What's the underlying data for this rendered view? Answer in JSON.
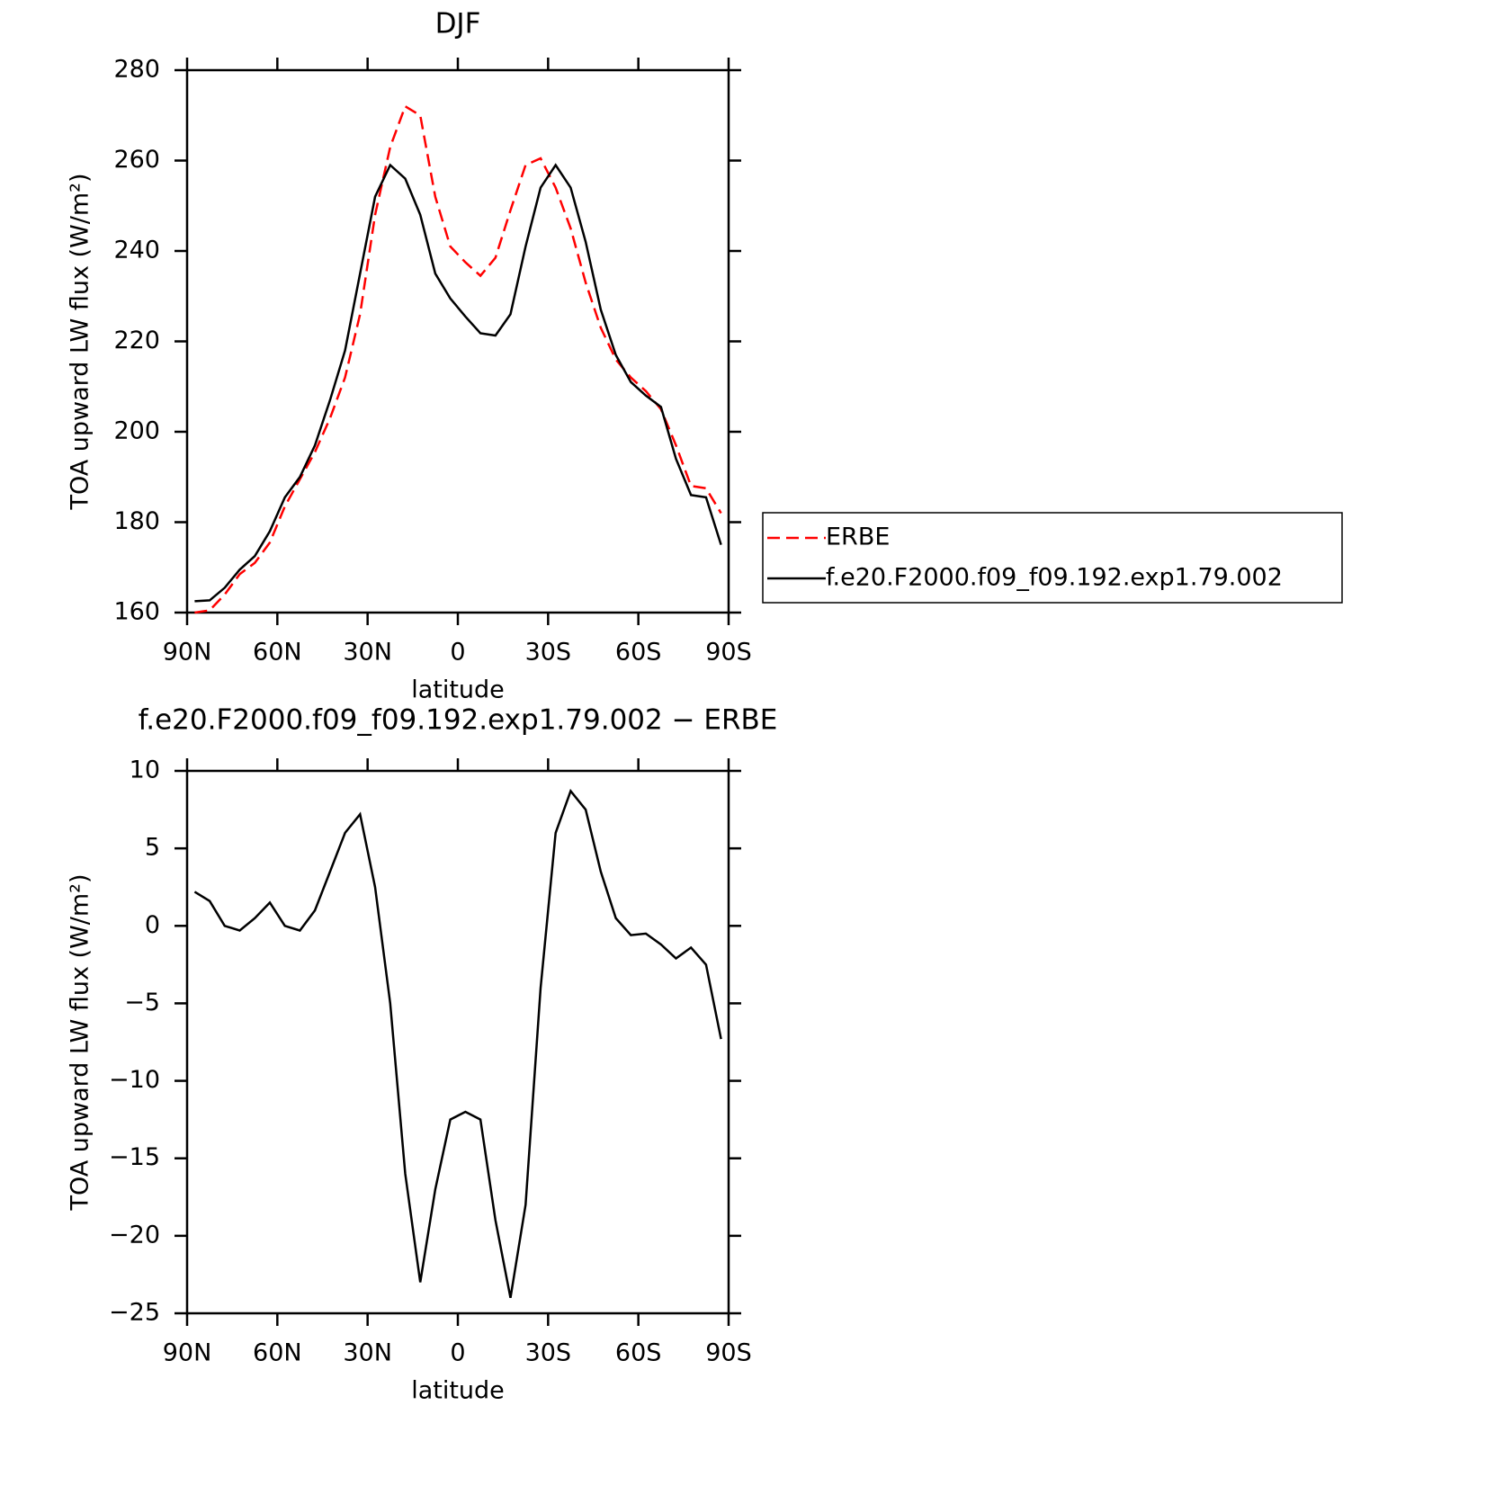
{
  "chart_data": [
    {
      "type": "line",
      "title": "DJF",
      "xlabel": "latitude",
      "ylabel": "TOA upward LW flux (W/m²)",
      "x": [
        87.5,
        82.5,
        77.5,
        72.5,
        67.5,
        62.5,
        57.5,
        52.5,
        47.5,
        42.5,
        37.5,
        32.5,
        27.5,
        22.5,
        17.5,
        12.5,
        7.5,
        2.5,
        -2.5,
        -7.5,
        -12.5,
        -17.5,
        -22.5,
        -27.5,
        -32.5,
        -37.5,
        -42.5,
        -47.5,
        -52.5,
        -57.5,
        -62.5,
        -67.5,
        -72.5,
        -77.5,
        -82.5,
        -87.5
      ],
      "series": [
        {
          "name": "ERBE",
          "color": "#ff0000",
          "dashed": true,
          "values": [
            160,
            160.5,
            164,
            168.5,
            171,
            175.5,
            183.5,
            189.5,
            195.5,
            203,
            212,
            226,
            248,
            263,
            272,
            270,
            252,
            241,
            237.5,
            234.5,
            238.5,
            249,
            259,
            260.5,
            254,
            245,
            233,
            223,
            216,
            212,
            209,
            205,
            197,
            188,
            187.5,
            182
          ]
        },
        {
          "name": "f.e20.F2000.f09_f09.192.exp1.79.002",
          "color": "#000000",
          "dashed": false,
          "values": [
            162.5,
            162.7,
            165.5,
            169.5,
            172.5,
            178,
            185.5,
            190,
            197,
            207,
            218,
            235,
            252,
            259,
            256,
            248,
            235,
            229.5,
            225.5,
            221.8,
            221.3,
            226,
            241,
            254,
            259,
            254,
            242,
            227,
            217,
            211,
            208,
            205.5,
            194,
            186,
            185.5,
            175
          ]
        }
      ],
      "xlim": [
        90,
        -90
      ],
      "xticks": [
        {
          "value": 90,
          "label": "90N"
        },
        {
          "value": 60,
          "label": "60N"
        },
        {
          "value": 30,
          "label": "30N"
        },
        0,
        {
          "value": -30,
          "label": "30S"
        },
        {
          "value": -60,
          "label": "60S"
        },
        {
          "value": -90,
          "label": "90S"
        }
      ],
      "ylim": [
        160,
        280
      ],
      "yticks": [
        160,
        180,
        200,
        220,
        240,
        260,
        280
      ],
      "legend": "right"
    },
    {
      "type": "line",
      "title": "f.e20.F2000.f09_f09.192.exp1.79.002 − ERBE",
      "xlabel": "latitude",
      "ylabel": "TOA upward LW flux (W/m²)",
      "x": [
        87.5,
        82.5,
        77.5,
        72.5,
        67.5,
        62.5,
        57.5,
        52.5,
        47.5,
        42.5,
        37.5,
        32.5,
        27.5,
        22.5,
        17.5,
        12.5,
        7.5,
        2.5,
        -2.5,
        -7.5,
        -12.5,
        -17.5,
        -22.5,
        -27.5,
        -32.5,
        -37.5,
        -42.5,
        -47.5,
        -52.5,
        -57.5,
        -62.5,
        -67.5,
        -72.5,
        -77.5,
        -82.5,
        -87.5
      ],
      "series": [
        {
          "color": "#000000",
          "dashed": false,
          "values": [
            2.2,
            1.6,
            0,
            -0.3,
            0.5,
            1.5,
            0,
            -0.3,
            1,
            3.5,
            6,
            7.2,
            2.5,
            -5,
            -16,
            -23,
            -17,
            -12.5,
            -12,
            -12.5,
            -19,
            -24,
            -18,
            -4,
            6,
            8.7,
            7.5,
            3.5,
            0.5,
            -0.6,
            -0.5,
            -1.2,
            -2.1,
            -1.4,
            -2.5,
            -7.3
          ]
        }
      ],
      "xlim": [
        90,
        -90
      ],
      "xticks": [
        {
          "value": 90,
          "label": "90N"
        },
        {
          "value": 60,
          "label": "60N"
        },
        {
          "value": 30,
          "label": "30N"
        },
        0,
        {
          "value": -30,
          "label": "30S"
        },
        {
          "value": -60,
          "label": "60S"
        },
        {
          "value": -90,
          "label": "90S"
        }
      ],
      "ylim": [
        -25,
        10
      ],
      "yticks": [
        {
          "value": -25,
          "label": "−25"
        },
        {
          "value": -20,
          "label": "−20"
        },
        {
          "value": -15,
          "label": "−15"
        },
        {
          "value": -10,
          "label": "−10"
        },
        {
          "value": -5,
          "label": "−5"
        },
        0,
        5,
        10
      ]
    }
  ]
}
